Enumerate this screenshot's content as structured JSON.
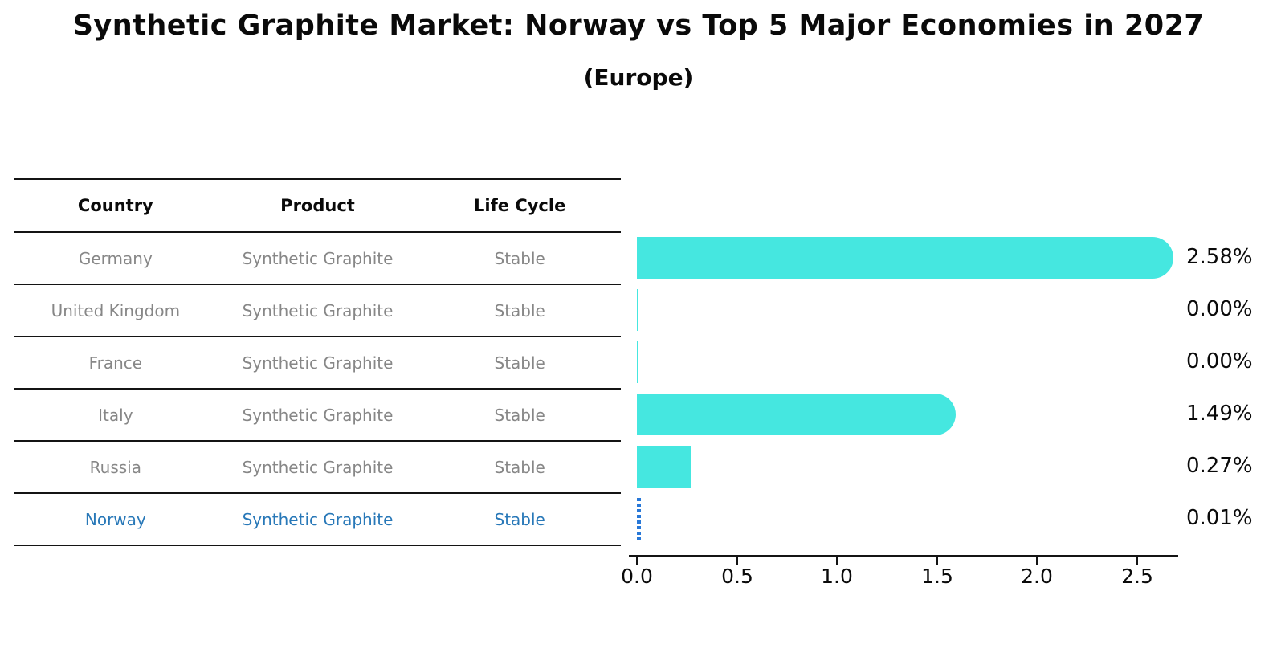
{
  "title": "Synthetic Graphite Market: Norway vs Top 5 Major Economies in 2027",
  "subtitle": "(Europe)",
  "table": {
    "headers": {
      "country": "Country",
      "product": "Product",
      "life_cycle": "Life Cycle"
    },
    "rows": [
      {
        "country": "Germany",
        "product": "Synthetic Graphite",
        "life_cycle": "Stable"
      },
      {
        "country": "United Kingdom",
        "product": "Synthetic Graphite",
        "life_cycle": "Stable"
      },
      {
        "country": "France",
        "product": "Synthetic Graphite",
        "life_cycle": "Stable"
      },
      {
        "country": "Italy",
        "product": "Synthetic Graphite",
        "life_cycle": "Stable"
      },
      {
        "country": "Russia",
        "product": "Synthetic Graphite",
        "life_cycle": "Stable"
      },
      {
        "country": "Norway",
        "product": "Synthetic Graphite",
        "life_cycle": "Stable"
      }
    ]
  },
  "chart_data": {
    "type": "bar",
    "orientation": "horizontal",
    "title": "Synthetic Graphite Market: Norway vs Top 5 Major Economies in 2027",
    "subtitle": "(Europe)",
    "categories": [
      "Germany",
      "United Kingdom",
      "France",
      "Italy",
      "Russia",
      "Norway"
    ],
    "values": [
      2.58,
      0.0,
      0.0,
      1.49,
      0.27,
      0.01
    ],
    "value_labels": [
      "2.58%",
      "0.00%",
      "0.00%",
      "1.49%",
      "0.27%",
      "0.01%"
    ],
    "unit": "%",
    "x_ticks": [
      0.0,
      0.5,
      1.0,
      1.5,
      2.0,
      2.5
    ],
    "x_tick_labels": [
      "0.0",
      "0.5",
      "1.0",
      "1.5",
      "2.0",
      "2.5"
    ],
    "xlim": [
      0,
      2.7
    ],
    "xlabel": "",
    "ylabel": "",
    "grid": false,
    "legend": false,
    "bar_color": "#45E7E0",
    "highlight_index": 5,
    "highlight_color": "#2878d8",
    "highlight_style": "dotted-outline"
  }
}
